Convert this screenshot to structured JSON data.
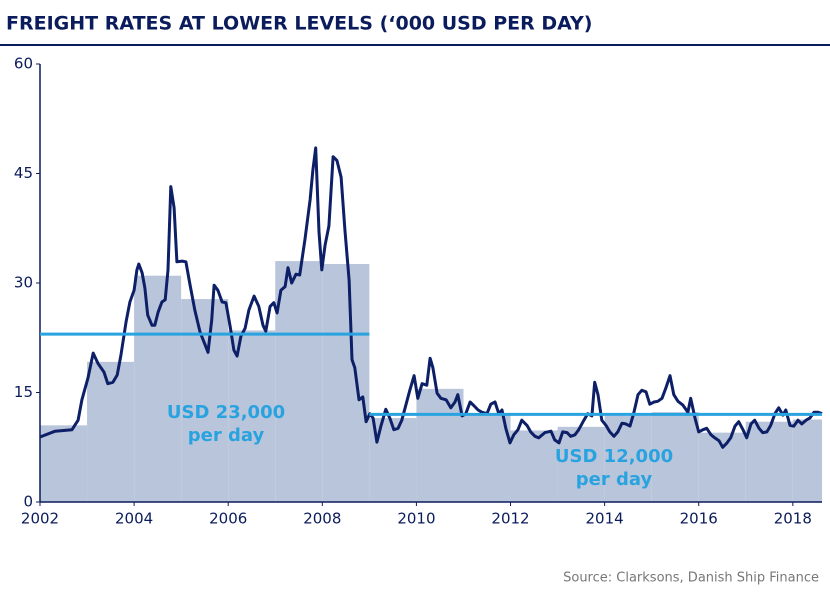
{
  "chart_data": {
    "type": "line",
    "title": "FREIGHT RATES AT LOWER LEVELS (‘000 USD PER DAY)",
    "source": "Source: Clarksons, Danish Ship Finance",
    "xlim": [
      2002,
      2018.62
    ],
    "xticks": [
      2002,
      2004,
      2006,
      2008,
      2010,
      2012,
      2014,
      2016,
      2018
    ],
    "ylim": [
      0,
      60
    ],
    "yticks": [
      0,
      15,
      30,
      45,
      60
    ],
    "grid": false,
    "line": {
      "color": "#0d1f66",
      "x": [
        2002.0,
        2002.32,
        2002.68,
        2002.81,
        2002.89,
        2003.02,
        2003.13,
        2003.23,
        2003.36,
        2003.44,
        2003.55,
        2003.64,
        2003.72,
        2003.83,
        2003.91,
        2004.0,
        2004.06,
        2004.1,
        2004.17,
        2004.23,
        2004.29,
        2004.38,
        2004.44,
        2004.51,
        2004.59,
        2004.66,
        2004.72,
        2004.78,
        2004.85,
        2004.91,
        2005.02,
        2005.1,
        2005.19,
        2005.29,
        2005.4,
        2005.51,
        2005.57,
        2005.65,
        2005.7,
        2005.78,
        2005.87,
        2005.95,
        2006.04,
        2006.12,
        2006.19,
        2006.27,
        2006.36,
        2006.44,
        2006.55,
        2006.65,
        2006.74,
        2006.8,
        2006.89,
        2006.97,
        2007.04,
        2007.12,
        2007.21,
        2007.27,
        2007.35,
        2007.44,
        2007.52,
        2007.63,
        2007.74,
        2007.8,
        2007.86,
        2007.93,
        2007.99,
        2008.06,
        2008.14,
        2008.23,
        2008.31,
        2008.4,
        2008.48,
        2008.57,
        2008.63,
        2008.69,
        2008.78,
        2008.86,
        2008.93,
        2009.01,
        2009.08,
        2009.16,
        2009.25,
        2009.35,
        2009.44,
        2009.52,
        2009.61,
        2009.69,
        2009.78,
        2009.86,
        2009.95,
        2010.03,
        2010.12,
        2010.22,
        2010.29,
        2010.35,
        2010.44,
        2010.52,
        2010.63,
        2010.73,
        2010.82,
        2010.88,
        2010.97,
        2011.05,
        2011.14,
        2011.22,
        2011.31,
        2011.39,
        2011.5,
        2011.58,
        2011.67,
        2011.75,
        2011.82,
        2011.9,
        2011.99,
        2012.07,
        2012.16,
        2012.24,
        2012.35,
        2012.43,
        2012.52,
        2012.6,
        2012.73,
        2012.86,
        2012.94,
        2013.03,
        2013.11,
        2013.2,
        2013.28,
        2013.37,
        2013.45,
        2013.56,
        2013.64,
        2013.73,
        2013.79,
        2013.86,
        2013.94,
        2014.03,
        2014.11,
        2014.2,
        2014.28,
        2014.37,
        2014.45,
        2014.54,
        2014.62,
        2014.71,
        2014.79,
        2014.88,
        2014.96,
        2015.05,
        2015.13,
        2015.22,
        2015.3,
        2015.39,
        2015.47,
        2015.56,
        2015.66,
        2015.77,
        2015.83,
        2015.92,
        2016.0,
        2016.09,
        2016.17,
        2016.26,
        2016.34,
        2016.43,
        2016.51,
        2016.6,
        2016.68,
        2016.77,
        2016.85,
        2016.94,
        2017.02,
        2017.11,
        2017.19,
        2017.28,
        2017.36,
        2017.45,
        2017.53,
        2017.62,
        2017.7,
        2017.79,
        2017.85,
        2017.94,
        2018.02,
        2018.11,
        2018.19,
        2018.28,
        2018.36,
        2018.45,
        2018.53,
        2018.62
      ],
      "values": [
        8.9,
        9.7,
        9.9,
        11.2,
        14.0,
        17.0,
        20.4,
        19.0,
        17.8,
        16.2,
        16.4,
        17.4,
        20.1,
        24.7,
        27.4,
        29.0,
        31.8,
        32.6,
        31.4,
        29.3,
        25.6,
        24.2,
        24.2,
        26.0,
        27.4,
        27.7,
        31.8,
        43.2,
        40.3,
        32.9,
        33.0,
        32.9,
        29.7,
        26.3,
        23.3,
        21.5,
        20.5,
        24.9,
        29.7,
        29.0,
        27.4,
        27.3,
        24.1,
        20.8,
        20.0,
        22.7,
        23.8,
        26.3,
        28.2,
        26.8,
        24.2,
        23.4,
        26.8,
        27.3,
        25.9,
        29.0,
        29.5,
        32.1,
        30.0,
        31.2,
        31.1,
        35.9,
        41.4,
        45.5,
        48.5,
        37.0,
        31.8,
        35.2,
        37.8,
        47.3,
        46.8,
        44.5,
        37.3,
        30.4,
        19.5,
        18.4,
        14.0,
        14.4,
        11.0,
        12.1,
        11.5,
        8.2,
        10.5,
        12.7,
        11.4,
        9.9,
        10.1,
        11.2,
        13.4,
        15.3,
        17.3,
        14.2,
        16.2,
        16.0,
        19.7,
        18.4,
        14.9,
        14.2,
        14.0,
        12.9,
        13.7,
        14.7,
        11.8,
        12.1,
        13.7,
        13.2,
        12.6,
        12.3,
        12.1,
        13.4,
        13.7,
        12.1,
        12.6,
        10.1,
        8.1,
        9.2,
        9.9,
        11.2,
        10.5,
        9.6,
        9.0,
        8.8,
        9.5,
        9.7,
        8.5,
        8.1,
        9.6,
        9.5,
        9.0,
        9.2,
        9.9,
        11.2,
        12.1,
        11.8,
        16.4,
        14.7,
        11.2,
        10.5,
        9.6,
        9.0,
        9.6,
        10.8,
        10.7,
        10.4,
        12.2,
        14.7,
        15.3,
        15.1,
        13.4,
        13.7,
        13.8,
        14.2,
        15.6,
        17.3,
        14.7,
        13.8,
        13.3,
        12.3,
        14.2,
        11.5,
        9.6,
        9.9,
        10.1,
        9.2,
        8.8,
        8.4,
        7.5,
        8.1,
        8.8,
        10.4,
        11.0,
        9.9,
        8.8,
        10.7,
        11.2,
        10.1,
        9.5,
        9.6,
        10.5,
        12.1,
        12.9,
        11.9,
        12.6,
        10.5,
        10.4,
        11.2,
        10.7,
        11.2,
        11.5,
        12.3,
        12.3,
        12.1
      ]
    },
    "bars": {
      "color": "#b9c5da",
      "bins": [
        2002,
        2003,
        2004,
        2005,
        2006,
        2007,
        2008,
        2009,
        2010,
        2011,
        2012,
        2013,
        2014,
        2015,
        2016,
        2017,
        2018,
        2018.62
      ],
      "values": [
        10.5,
        19.2,
        31.0,
        27.8,
        23.5,
        33.0,
        32.6,
        11.5,
        15.5,
        12.0,
        9.8,
        10.3,
        11.8,
        12.3,
        9.5,
        11.0,
        11.3
      ]
    },
    "averages": [
      {
        "value": 23,
        "x": [
          2002,
          2009
        ],
        "label": [
          "USD 23,000",
          "per day"
        ],
        "color": "#29a3e0"
      },
      {
        "value": 12,
        "x": [
          2009,
          2018.62
        ],
        "label": [
          "USD 12,000",
          "per day"
        ],
        "color": "#29a3e0"
      }
    ]
  }
}
